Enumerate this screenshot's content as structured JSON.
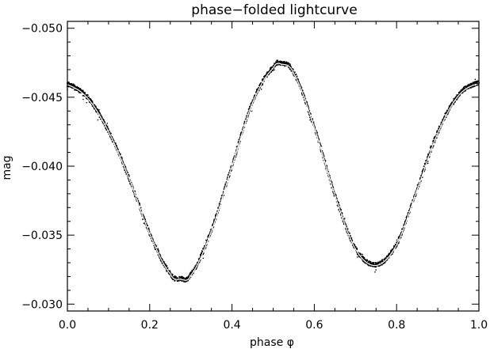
{
  "chart_data": {
    "type": "scatter",
    "title": "phase−folded lightcurve",
    "xlabel": "phase φ",
    "ylabel": "mag",
    "xlim": [
      0.0,
      1.0
    ],
    "ylim": [
      -0.0295,
      -0.0505
    ],
    "y_inverted": true,
    "x_ticks": [
      "0.0",
      "0.2",
      "0.4",
      "0.6",
      "0.8",
      "1.0"
    ],
    "x_tick_values": [
      0.0,
      0.2,
      0.4,
      0.6,
      0.8,
      1.0
    ],
    "y_ticks": [
      "−0.050",
      "−0.045",
      "−0.040",
      "−0.035",
      "−0.030"
    ],
    "y_tick_values": [
      -0.05,
      -0.045,
      -0.04,
      -0.035,
      -0.03
    ],
    "grid": false,
    "legend": "none",
    "colors": {
      "points": "#000000",
      "fit_line": "#ffffff",
      "axes": "#000000"
    },
    "series": [
      {
        "kind": "points",
        "x": [
          0.0,
          0.05,
          0.1,
          0.15,
          0.2,
          0.25,
          0.275,
          0.3,
          0.35,
          0.4,
          0.45,
          0.5,
          0.52,
          0.55,
          0.6,
          0.65,
          0.7,
          0.75,
          0.8,
          0.85,
          0.9,
          0.95,
          1.0
        ],
        "y": [
          -0.0459,
          -0.0449,
          -0.0425,
          -0.0391,
          -0.0351,
          -0.0322,
          -0.0318,
          -0.0321,
          -0.0353,
          -0.04,
          -0.0446,
          -0.0471,
          -0.0474,
          -0.0467,
          -0.0428,
          -0.0379,
          -0.034,
          -0.0328,
          -0.0343,
          -0.0383,
          -0.0424,
          -0.0451,
          -0.046
        ]
      },
      {
        "kind": "fit",
        "x": [
          0.0,
          0.05,
          0.1,
          0.15,
          0.2,
          0.25,
          0.275,
          0.3,
          0.35,
          0.4,
          0.45,
          0.5,
          0.52,
          0.55,
          0.6,
          0.65,
          0.7,
          0.75,
          0.8,
          0.85,
          0.9,
          0.95,
          1.0
        ],
        "y": [
          -0.0459,
          -0.0449,
          -0.0425,
          -0.0391,
          -0.0351,
          -0.0322,
          -0.0318,
          -0.0321,
          -0.0353,
          -0.04,
          -0.0446,
          -0.0471,
          -0.0474,
          -0.0467,
          -0.0428,
          -0.0379,
          -0.034,
          -0.0328,
          -0.0343,
          -0.0383,
          -0.0424,
          -0.0451,
          -0.046
        ]
      }
    ]
  }
}
